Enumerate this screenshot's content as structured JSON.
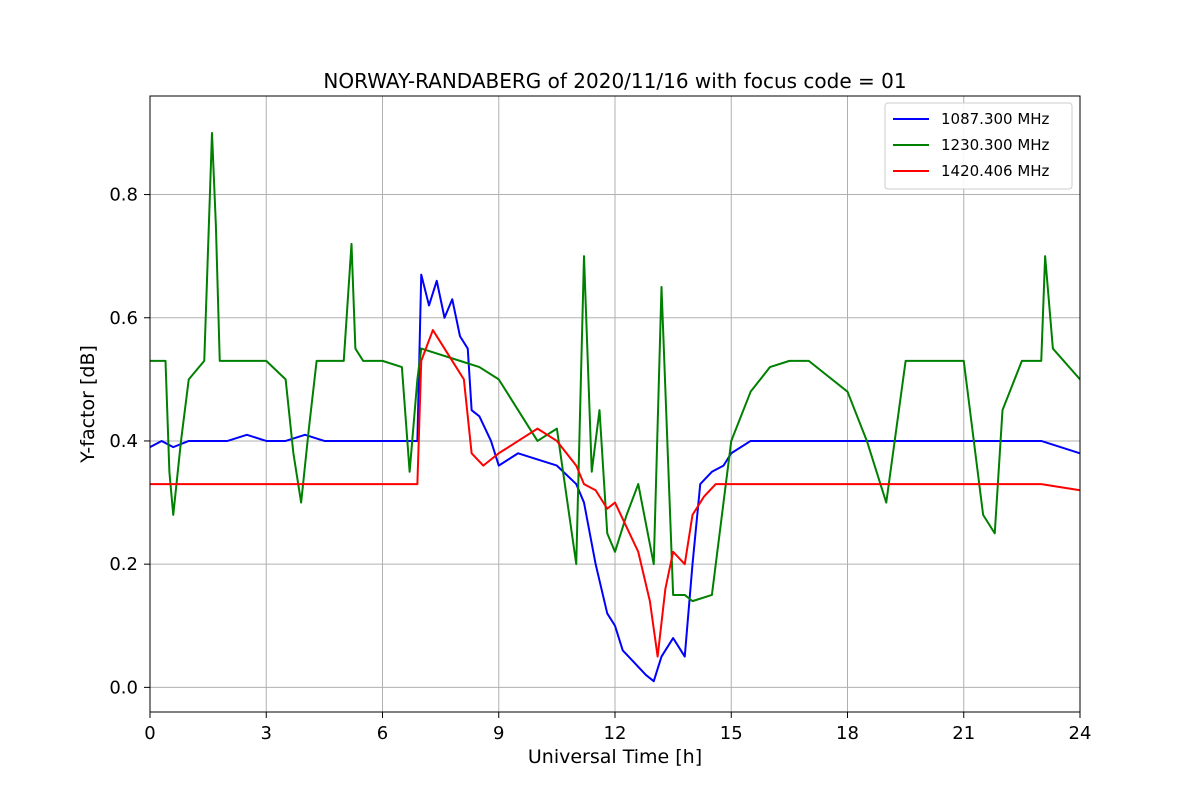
{
  "chart_data": {
    "type": "line",
    "title": "NORWAY-RANDABERG of 2020/11/16 with focus code = 01",
    "xlabel": "Universal Time [h]",
    "ylabel": "Y-factor [dB]",
    "xlim": [
      0,
      24
    ],
    "ylim": [
      -0.04,
      0.96
    ],
    "xticks": [
      "0",
      "3",
      "6",
      "9",
      "12",
      "15",
      "18",
      "21",
      "24"
    ],
    "yticks": [
      "0.0",
      "0.2",
      "0.4",
      "0.6",
      "0.8"
    ],
    "grid": true,
    "legend_position": "top-right",
    "series": [
      {
        "name": "1087.300 MHz",
        "color": "#0000ff",
        "x": [
          0,
          0.3,
          0.6,
          1.0,
          1.5,
          2.0,
          2.5,
          3.0,
          3.5,
          4.0,
          4.5,
          5.0,
          5.5,
          6.0,
          6.5,
          6.9,
          7.0,
          7.2,
          7.4,
          7.6,
          7.8,
          8.0,
          8.2,
          8.3,
          8.5,
          8.8,
          9.0,
          9.5,
          10.0,
          10.5,
          11.0,
          11.2,
          11.5,
          11.8,
          12.0,
          12.2,
          12.5,
          12.8,
          13.0,
          13.2,
          13.5,
          13.8,
          14.0,
          14.2,
          14.5,
          14.8,
          15.0,
          15.5,
          16.0,
          16.5,
          17.0,
          18.0,
          19.0,
          20.0,
          21.0,
          22.0,
          23.0,
          24.0
        ],
        "y": [
          0.39,
          0.4,
          0.39,
          0.4,
          0.4,
          0.4,
          0.41,
          0.4,
          0.4,
          0.41,
          0.4,
          0.4,
          0.4,
          0.4,
          0.4,
          0.4,
          0.67,
          0.62,
          0.66,
          0.6,
          0.63,
          0.57,
          0.55,
          0.45,
          0.44,
          0.4,
          0.36,
          0.38,
          0.37,
          0.36,
          0.33,
          0.3,
          0.2,
          0.12,
          0.1,
          0.06,
          0.04,
          0.02,
          0.01,
          0.05,
          0.08,
          0.05,
          0.2,
          0.33,
          0.35,
          0.36,
          0.38,
          0.4,
          0.4,
          0.4,
          0.4,
          0.4,
          0.4,
          0.4,
          0.4,
          0.4,
          0.4,
          0.38
        ]
      },
      {
        "name": "1230.300 MHz",
        "color": "#008000",
        "x": [
          0,
          0.4,
          0.5,
          0.6,
          0.8,
          1.0,
          1.4,
          1.6,
          1.7,
          1.8,
          2.0,
          2.5,
          3.0,
          3.5,
          3.7,
          3.9,
          4.1,
          4.3,
          5.0,
          5.2,
          5.3,
          5.5,
          6.0,
          6.5,
          6.7,
          6.9,
          7.0,
          8.0,
          8.5,
          9.0,
          9.5,
          10.0,
          10.5,
          11.0,
          11.2,
          11.4,
          11.6,
          11.8,
          12.0,
          12.3,
          12.6,
          13.0,
          13.2,
          13.5,
          13.8,
          14.0,
          14.5,
          15.0,
          15.5,
          16.0,
          16.5,
          17.0,
          18.0,
          18.5,
          19.0,
          19.5,
          20.0,
          21.0,
          21.5,
          21.8,
          22.0,
          22.5,
          23.0,
          23.1,
          23.3,
          24.0
        ],
        "y": [
          0.53,
          0.53,
          0.35,
          0.28,
          0.4,
          0.5,
          0.53,
          0.9,
          0.75,
          0.53,
          0.53,
          0.53,
          0.53,
          0.5,
          0.38,
          0.3,
          0.42,
          0.53,
          0.53,
          0.72,
          0.55,
          0.53,
          0.53,
          0.52,
          0.35,
          0.5,
          0.55,
          0.53,
          0.52,
          0.5,
          0.45,
          0.4,
          0.42,
          0.2,
          0.7,
          0.35,
          0.45,
          0.25,
          0.22,
          0.28,
          0.33,
          0.2,
          0.65,
          0.15,
          0.15,
          0.14,
          0.15,
          0.4,
          0.48,
          0.52,
          0.53,
          0.53,
          0.48,
          0.4,
          0.3,
          0.53,
          0.53,
          0.53,
          0.28,
          0.25,
          0.45,
          0.53,
          0.53,
          0.7,
          0.55,
          0.5
        ]
      },
      {
        "name": "1420.406 MHz",
        "color": "#ff0000",
        "x": [
          0,
          1.0,
          2.0,
          3.0,
          4.0,
          5.0,
          6.0,
          6.9,
          7.0,
          7.3,
          7.6,
          7.9,
          8.1,
          8.3,
          8.6,
          9.0,
          9.5,
          10.0,
          10.5,
          11.0,
          11.2,
          11.5,
          11.8,
          12.0,
          12.3,
          12.6,
          12.9,
          13.1,
          13.3,
          13.5,
          13.8,
          14.0,
          14.3,
          14.6,
          15.0,
          16.0,
          17.0,
          18.0,
          19.0,
          20.0,
          21.0,
          22.0,
          23.0,
          24.0
        ],
        "y": [
          0.33,
          0.33,
          0.33,
          0.33,
          0.33,
          0.33,
          0.33,
          0.33,
          0.53,
          0.58,
          0.55,
          0.52,
          0.5,
          0.38,
          0.36,
          0.38,
          0.4,
          0.42,
          0.4,
          0.36,
          0.33,
          0.32,
          0.29,
          0.3,
          0.26,
          0.22,
          0.14,
          0.05,
          0.16,
          0.22,
          0.2,
          0.28,
          0.31,
          0.33,
          0.33,
          0.33,
          0.33,
          0.33,
          0.33,
          0.33,
          0.33,
          0.33,
          0.33,
          0.32
        ]
      }
    ]
  }
}
